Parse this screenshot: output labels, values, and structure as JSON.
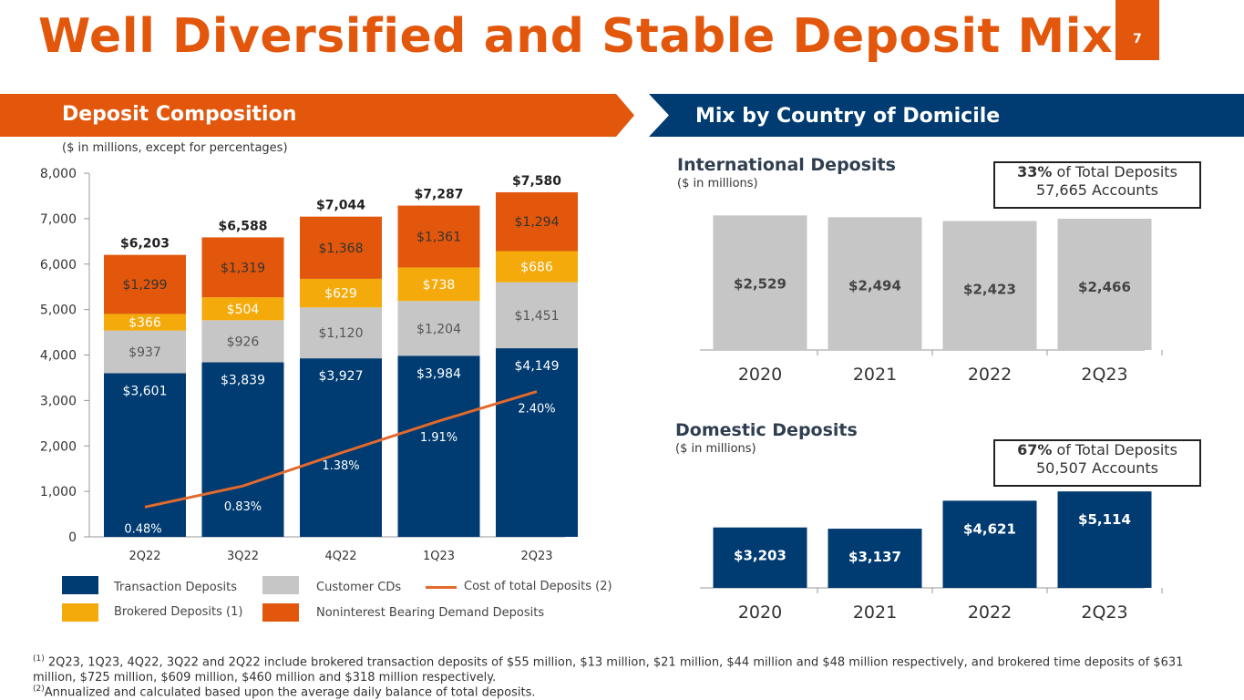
{
  "title": "Well Diversified and Stable Deposit Mix",
  "page_number": "7",
  "left_banner": "Deposit Composition",
  "right_banner": "Mix by Country of Domicile",
  "units_note": "($ in millions, except for percentages)",
  "legend": {
    "transaction": "Transaction Deposits",
    "cds": "Customer CDs",
    "cost": "Cost of total Deposits",
    "cost_sup": "(2)",
    "brokered": "Brokered Deposits",
    "brokered_sup": "(1)",
    "nib": "Noninterest Bearing Demand Deposits"
  },
  "international": {
    "heading": "International Deposits",
    "units": "($ in millions)",
    "callout_pct": "33%",
    "callout_rest": "of Total Deposits",
    "callout_accounts": "57,665 Accounts"
  },
  "domestic": {
    "heading": "Domestic Deposits",
    "units": "($ in millions)",
    "callout_pct": "67%",
    "callout_rest": "of Total Deposits",
    "callout_accounts": "50,507 Accounts"
  },
  "footnotes": {
    "f1_mark": "(1)",
    "f1": "2Q23, 1Q23, 4Q22, 3Q22 and 2Q22  include brokered transaction deposits of $55 million, $13 million, $21 million, $44 million and $48 million respectively, and brokered time deposits of $631 million,  $725 million,  $609 million, $460 million and $318 million respectively.",
    "f2_mark": "(2)",
    "f2": "Annualized and calculated based upon the average daily balance of total deposits."
  },
  "colors": {
    "orange": "#E2570C",
    "navy": "#003B71",
    "gray": "#C6C6C6",
    "gold": "#F4AA0A",
    "line": "#E26A2C"
  },
  "chart_data": [
    {
      "type": "bar",
      "stacked": true,
      "categories": [
        "2Q22",
        "3Q22",
        "4Q22",
        "1Q23",
        "2Q23"
      ],
      "ylim": [
        0,
        8000
      ],
      "yticks": [
        "0",
        "1,000",
        "2,000",
        "3,000",
        "4,000",
        "5,000",
        "6,000",
        "7,000",
        "8,000"
      ],
      "series": [
        {
          "name": "Transaction Deposits",
          "values": [
            3601,
            3839,
            3927,
            3984,
            4149
          ],
          "labels": [
            "$3,601",
            "$3,839",
            "$3,927",
            "$3,984",
            "$4,149"
          ]
        },
        {
          "name": "Customer CDs",
          "values": [
            937,
            926,
            1120,
            1204,
            1451
          ],
          "labels": [
            "$937",
            "$926",
            "$1,120",
            "$1,204",
            "$1,451"
          ]
        },
        {
          "name": "Brokered Deposits",
          "values": [
            366,
            504,
            629,
            738,
            686
          ],
          "labels": [
            "$366",
            "$504",
            "$629",
            "$738",
            "$686"
          ]
        },
        {
          "name": "Noninterest Bearing Demand Deposits",
          "values": [
            1299,
            1319,
            1368,
            1361,
            1294
          ],
          "labels": [
            "$1,299",
            "$1,319",
            "$1,368",
            "$1,361",
            "$1,294"
          ]
        }
      ],
      "totals": [
        "$6,203",
        "$6,588",
        "$7,044",
        "$7,287",
        "$7,580"
      ],
      "line": {
        "name": "Cost of total Deposits",
        "values": [
          0.48,
          0.83,
          1.38,
          1.91,
          2.4
        ],
        "labels": [
          "0.48%",
          "0.83%",
          "1.38%",
          "1.91%",
          "2.40%"
        ]
      }
    },
    {
      "type": "bar",
      "categories": [
        "2020",
        "2021",
        "2022",
        "2Q23"
      ],
      "values": [
        2529,
        2494,
        2423,
        2466
      ],
      "labels": [
        "$2,529",
        "$2,494",
        "$2,423",
        "$2,466"
      ]
    },
    {
      "type": "bar",
      "categories": [
        "2020",
        "2021",
        "2022",
        "2Q23"
      ],
      "values": [
        3203,
        3137,
        4621,
        5114
      ],
      "labels": [
        "$3,203",
        "$3,137",
        "$4,621",
        "$5,114"
      ]
    }
  ]
}
